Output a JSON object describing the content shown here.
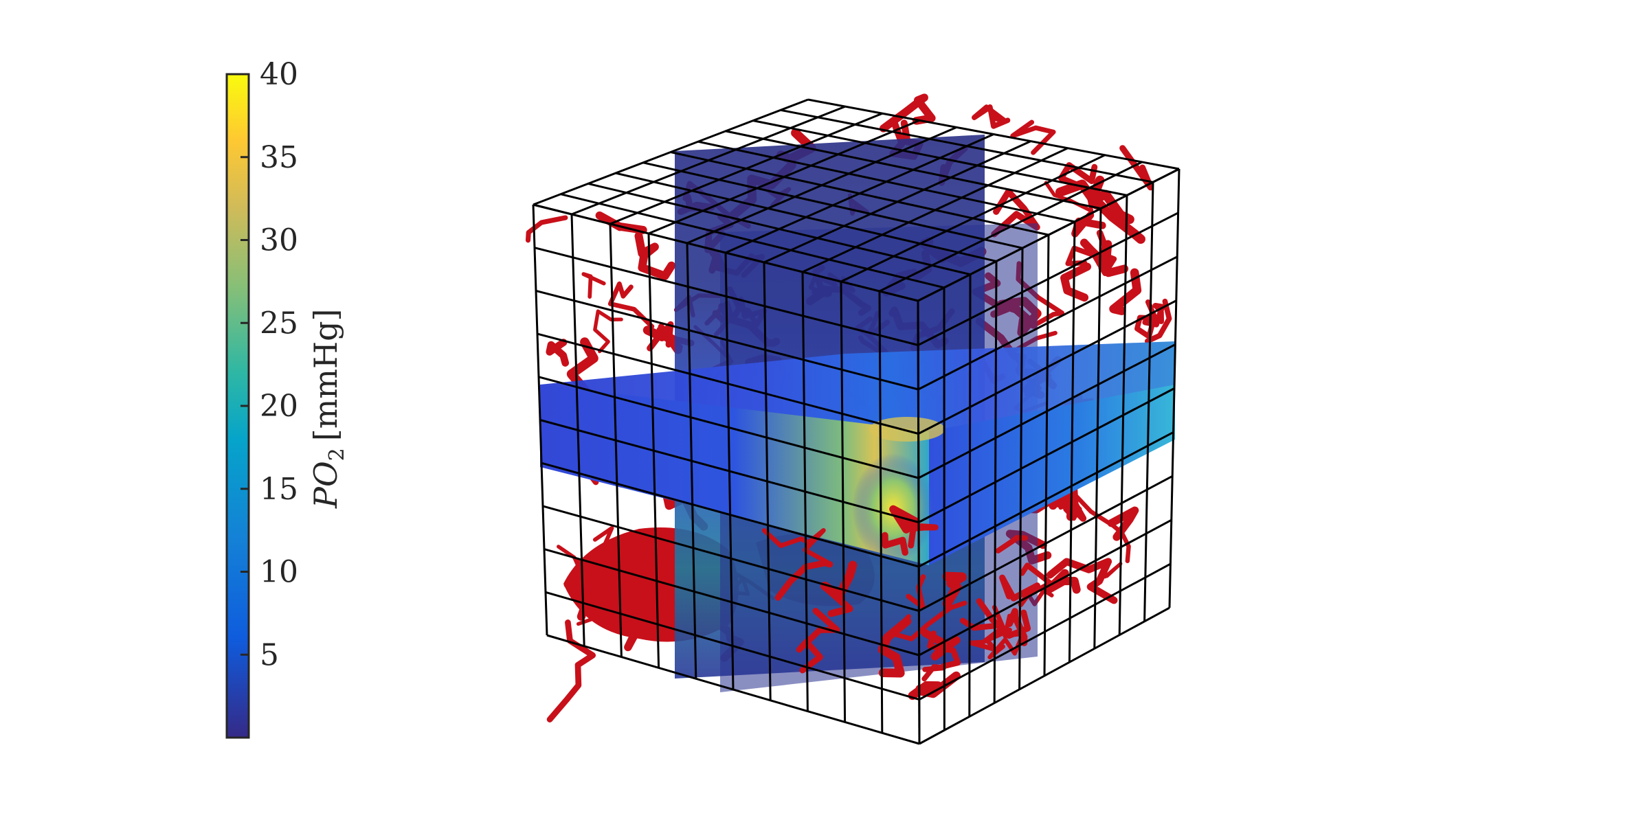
{
  "chart_data": {
    "type": "heatmap",
    "colorbar": {
      "label_main": "PO",
      "label_sub": "2",
      "label_units": "[mmHg]",
      "range": [
        0,
        40
      ],
      "ticks": [
        5,
        10,
        15,
        20,
        25,
        30,
        35,
        40
      ],
      "tick_labels": [
        "5",
        "10",
        "15",
        "20",
        "25",
        "30",
        "35",
        "40"
      ],
      "colormap": "parula",
      "colormap_stops": [
        "#352a87",
        "#0f5cdd",
        "#1481d6",
        "#06a4ca",
        "#2eb7a4",
        "#87bf77",
        "#d1bb59",
        "#fec832",
        "#f9fb0e"
      ]
    },
    "volume": {
      "description_type": "3d-volume-slices",
      "grid_divisions": 10,
      "vessel_color": "#c8101a",
      "slices": [
        "x",
        "y",
        "z"
      ],
      "frame_color": "#000000"
    }
  }
}
